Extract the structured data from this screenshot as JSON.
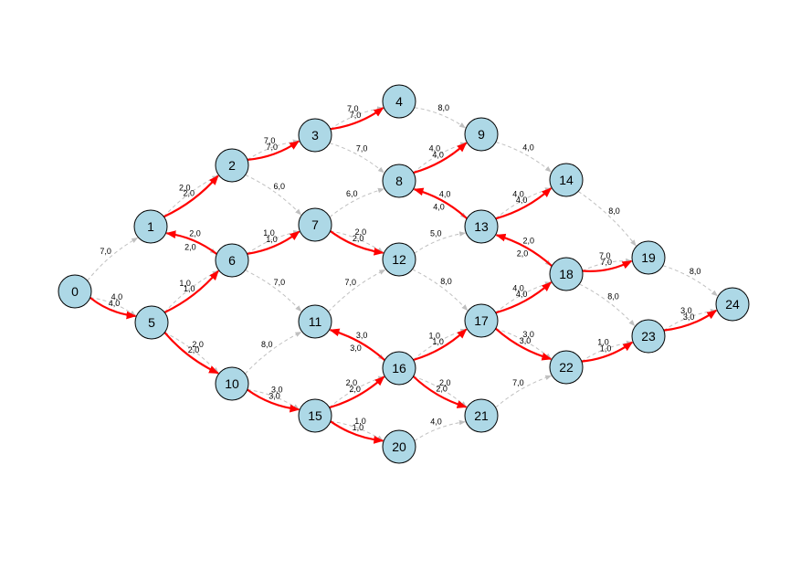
{
  "colors": {
    "node_fill": "#add8e6",
    "node_stroke": "#000000",
    "dashed_edge": "#c0c0c0",
    "flow_edge": "#ff0000"
  },
  "nodes": [
    "0",
    "1",
    "2",
    "3",
    "4",
    "5",
    "6",
    "7",
    "8",
    "9",
    "10",
    "11",
    "12",
    "13",
    "14",
    "15",
    "16",
    "17",
    "18",
    "19",
    "20",
    "21",
    "22",
    "23",
    "24"
  ],
  "dashed_edges": [
    {
      "from": "0",
      "to": "1",
      "label": "7,0"
    },
    {
      "from": "0",
      "to": "5",
      "label": "4,0"
    },
    {
      "from": "1",
      "to": "2",
      "label": "2,0"
    },
    {
      "from": "1",
      "to": "6",
      "label": "2,0"
    },
    {
      "from": "2",
      "to": "3",
      "label": "7,0"
    },
    {
      "from": "2",
      "to": "7",
      "label": "6,0"
    },
    {
      "from": "3",
      "to": "4",
      "label": "7,0"
    },
    {
      "from": "3",
      "to": "8",
      "label": "7,0"
    },
    {
      "from": "4",
      "to": "9",
      "label": "8,0"
    },
    {
      "from": "5",
      "to": "6",
      "label": "1,0"
    },
    {
      "from": "5",
      "to": "10",
      "label": "2,0"
    },
    {
      "from": "6",
      "to": "7",
      "label": "1,0"
    },
    {
      "from": "6",
      "to": "11",
      "label": "7,0"
    },
    {
      "from": "7",
      "to": "8",
      "label": "6,0"
    },
    {
      "from": "7",
      "to": "12",
      "label": "2,0"
    },
    {
      "from": "8",
      "to": "9",
      "label": "4,0"
    },
    {
      "from": "8",
      "to": "13",
      "label": "4,0"
    },
    {
      "from": "9",
      "to": "14",
      "label": "4,0"
    },
    {
      "from": "10",
      "to": "11",
      "label": "8,0"
    },
    {
      "from": "10",
      "to": "15",
      "label": "3,0"
    },
    {
      "from": "11",
      "to": "12",
      "label": "7,0"
    },
    {
      "from": "11",
      "to": "16",
      "label": "3,0"
    },
    {
      "from": "12",
      "to": "13",
      "label": "5,0"
    },
    {
      "from": "12",
      "to": "17",
      "label": "8,0"
    },
    {
      "from": "13",
      "to": "14",
      "label": "4,0"
    },
    {
      "from": "13",
      "to": "18",
      "label": "2,0"
    },
    {
      "from": "14",
      "to": "19",
      "label": "8,0"
    },
    {
      "from": "15",
      "to": "16",
      "label": "2,0"
    },
    {
      "from": "15",
      "to": "20",
      "label": "1,0"
    },
    {
      "from": "16",
      "to": "17",
      "label": "1,0"
    },
    {
      "from": "16",
      "to": "21",
      "label": "2,0"
    },
    {
      "from": "17",
      "to": "18",
      "label": "4,0"
    },
    {
      "from": "17",
      "to": "22",
      "label": "3,0"
    },
    {
      "from": "18",
      "to": "19",
      "label": "7,0"
    },
    {
      "from": "18",
      "to": "23",
      "label": "8,0"
    },
    {
      "from": "19",
      "to": "24",
      "label": "8,0"
    },
    {
      "from": "20",
      "to": "21",
      "label": "4,0"
    },
    {
      "from": "21",
      "to": "22",
      "label": "7,0"
    },
    {
      "from": "22",
      "to": "23",
      "label": "1,0"
    },
    {
      "from": "23",
      "to": "24",
      "label": "3,0"
    }
  ],
  "red_edges": [
    {
      "from": "0",
      "to": "5",
      "label": "4,0"
    },
    {
      "from": "5",
      "to": "6",
      "label": "1,0"
    },
    {
      "from": "6",
      "to": "1",
      "label": "2,0"
    },
    {
      "from": "1",
      "to": "2",
      "label": "2,0"
    },
    {
      "from": "2",
      "to": "3",
      "label": "7,0"
    },
    {
      "from": "3",
      "to": "4",
      "label": "7,0"
    },
    {
      "from": "6",
      "to": "7",
      "label": "1,0"
    },
    {
      "from": "7",
      "to": "12",
      "label": "2,0"
    },
    {
      "from": "5",
      "to": "10",
      "label": "2,0"
    },
    {
      "from": "10",
      "to": "15",
      "label": "3,0"
    },
    {
      "from": "15",
      "to": "16",
      "label": "2,0"
    },
    {
      "from": "15",
      "to": "20",
      "label": "1,0"
    },
    {
      "from": "16",
      "to": "11",
      "label": "3,0"
    },
    {
      "from": "16",
      "to": "17",
      "label": "1,0"
    },
    {
      "from": "16",
      "to": "21",
      "label": "2,0"
    },
    {
      "from": "17",
      "to": "18",
      "label": "4,0"
    },
    {
      "from": "17",
      "to": "22",
      "label": "3,0"
    },
    {
      "from": "18",
      "to": "13",
      "label": "2,0"
    },
    {
      "from": "13",
      "to": "8",
      "label": "4,0"
    },
    {
      "from": "8",
      "to": "9",
      "label": "4,0"
    },
    {
      "from": "13",
      "to": "14",
      "label": "4,0"
    },
    {
      "from": "18",
      "to": "19",
      "label": "7,0"
    },
    {
      "from": "22",
      "to": "23",
      "label": "1,0"
    },
    {
      "from": "23",
      "to": "24",
      "label": "3,0"
    }
  ]
}
